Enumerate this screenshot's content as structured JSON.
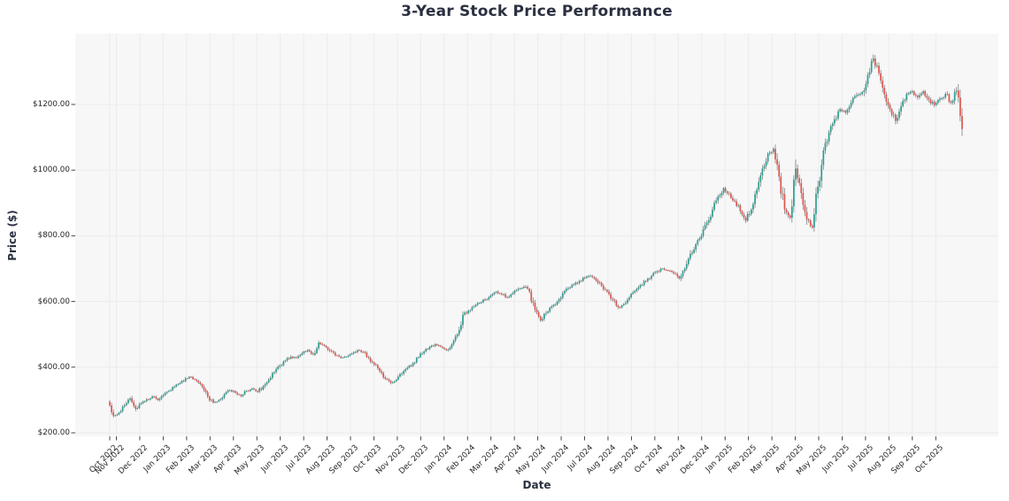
{
  "chart_data": {
    "type": "candlestick",
    "title": "3-Year Stock Price Performance",
    "xlabel": "Date",
    "ylabel": "Price ($)",
    "legend": "none",
    "grid": "on",
    "plot_bg": "#f7f7f8",
    "grid_color": "#ebebee",
    "tick_mark_color": "#333333",
    "tick_label_color": "#262626",
    "title_color": "#2b3040",
    "up_color": "#2a9d8f",
    "down_color": "#de544b",
    "wick_color": "#3f3f3f",
    "ylim": [
      190,
      1410
    ],
    "y_tick_values": [
      200,
      400,
      600,
      800,
      1000,
      1200
    ],
    "y_tick_labels": [
      "$200.00",
      "$400.00",
      "$600.00",
      "$800.00",
      "$1000.00",
      "$1200.00"
    ],
    "x_tick_labels": [
      "Oct 2022",
      "Nov 2022",
      "Dec 2022",
      "Jan 2023",
      "Feb 2023",
      "Mar 2023",
      "Apr 2023",
      "May 2023",
      "Jun 2023",
      "Jul 2023",
      "Aug 2023",
      "Sep 2023",
      "Oct 2023",
      "Nov 2023",
      "Dec 2023",
      "Jan 2024",
      "Feb 2024",
      "Mar 2024",
      "Apr 2024",
      "May 2024",
      "Jun 2024",
      "Jul 2024",
      "Aug 2024",
      "Sep 2024",
      "Oct 2024",
      "Nov 2024",
      "Dec 2024",
      "Jan 2025",
      "Feb 2025",
      "Mar 2025",
      "Apr 2025",
      "May 2025",
      "Jun 2025",
      "Jul 2025",
      "Aug 2025",
      "Sep 2025",
      "Oct 2025"
    ],
    "series_frequency": "weekly",
    "period_start": "Oct 2022",
    "period_end": "Oct 2025",
    "price_start": 295,
    "price_end": 1125,
    "price_peak": 1340,
    "closes": [
      295,
      252,
      262,
      284,
      305,
      273,
      290,
      302,
      311,
      300,
      315,
      328,
      340,
      352,
      366,
      370,
      358,
      340,
      310,
      292,
      300,
      318,
      330,
      322,
      312,
      328,
      335,
      325,
      342,
      362,
      385,
      405,
      420,
      432,
      428,
      442,
      452,
      438,
      475,
      465,
      450,
      436,
      428,
      432,
      442,
      452,
      446,
      428,
      408,
      388,
      365,
      352,
      362,
      380,
      398,
      412,
      430,
      448,
      462,
      470,
      462,
      452,
      470,
      500,
      560,
      572,
      585,
      596,
      605,
      618,
      630,
      622,
      612,
      625,
      638,
      645,
      630,
      575,
      542,
      565,
      585,
      600,
      625,
      640,
      652,
      662,
      672,
      678,
      664,
      648,
      630,
      606,
      582,
      592,
      612,
      632,
      650,
      662,
      678,
      692,
      700,
      694,
      686,
      670,
      700,
      745,
      775,
      800,
      840,
      880,
      920,
      945,
      928,
      905,
      875,
      846,
      880,
      940,
      1005,
      1050,
      1065,
      980,
      880,
      855,
      1005,
      930,
      850,
      825,
      950,
      1060,
      1115,
      1155,
      1185,
      1175,
      1205,
      1228,
      1238,
      1290,
      1340,
      1295,
      1230,
      1185,
      1150,
      1195,
      1232,
      1240,
      1222,
      1240,
      1215,
      1198,
      1218,
      1232,
      1205,
      1242,
      1125
    ]
  }
}
